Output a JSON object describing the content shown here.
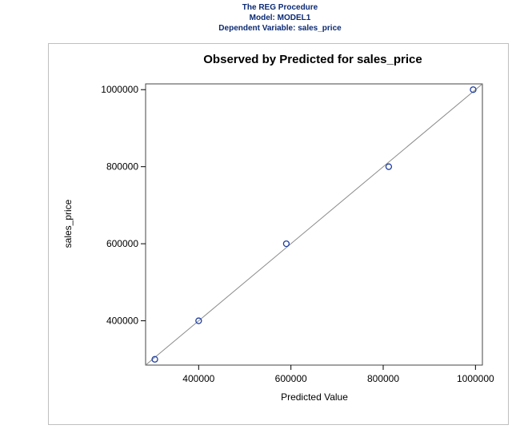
{
  "header": {
    "line1": "The REG Procedure",
    "line2": "Model: MODEL1",
    "line3": "Dependent Variable: sales_price"
  },
  "colors": {
    "header_text": "#0b2a73",
    "marker": "#1f3fa0",
    "ref_line": "#8a8a8a"
  },
  "chart_data": {
    "type": "scatter",
    "title": "Observed by Predicted for sales_price",
    "xlabel": "Predicted Value",
    "ylabel": "sales_price",
    "xlim": [
      285000,
      1015000
    ],
    "ylim": [
      285000,
      1015000
    ],
    "x_ticks": [
      400000,
      600000,
      800000,
      1000000
    ],
    "y_ticks": [
      400000,
      600000,
      800000,
      1000000
    ],
    "x_tick_labels": [
      "400000",
      "600000",
      "800000",
      "1000000"
    ],
    "y_tick_labels": [
      "400000",
      "600000",
      "800000",
      "1000000"
    ],
    "diagonal_reference_line": true,
    "grid": false,
    "points": [
      {
        "x": 305000,
        "y": 300000
      },
      {
        "x": 400000,
        "y": 400000
      },
      {
        "x": 590000,
        "y": 600000
      },
      {
        "x": 812000,
        "y": 800000
      },
      {
        "x": 995000,
        "y": 1000000
      }
    ]
  }
}
